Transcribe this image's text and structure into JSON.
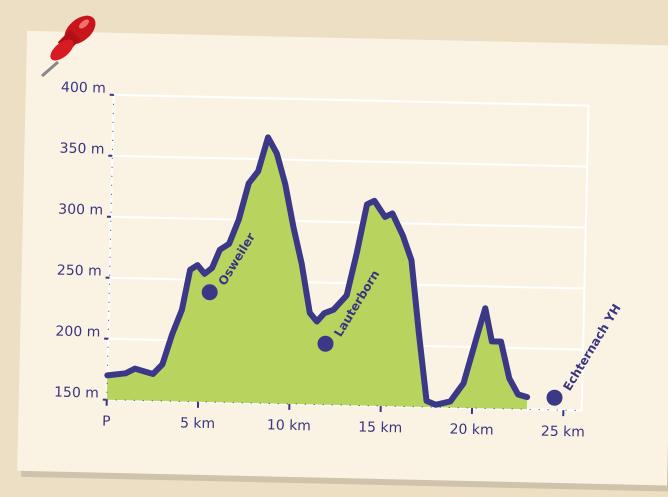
{
  "chart_data": {
    "type": "area",
    "x": [
      0,
      1,
      1.5,
      2.5,
      3,
      3.5,
      4,
      4.4,
      4.8,
      5.2,
      5.6,
      6,
      6.5,
      7,
      7.5,
      8,
      8.5,
      9,
      9.5,
      10,
      10.5,
      11,
      11.4,
      11.8,
      12.3,
      13,
      13.5,
      14,
      14.4,
      15,
      15.4,
      16,
      16.5,
      17,
      17.5,
      18,
      18.8,
      19.5,
      20.2,
      20.6,
      21,
      21.5,
      22,
      22.5,
      23
    ],
    "values": [
      170,
      172,
      176,
      172,
      180,
      205,
      225,
      258,
      262,
      255,
      260,
      275,
      280,
      300,
      330,
      340,
      368,
      355,
      330,
      295,
      265,
      225,
      218,
      225,
      228,
      240,
      275,
      315,
      318,
      305,
      308,
      290,
      270,
      210,
      155,
      152,
      155,
      170,
      210,
      232,
      205,
      205,
      175,
      162,
      160
    ],
    "color": "#b7d45e",
    "line_color": "#3b3888",
    "xlim": [
      0,
      26
    ],
    "ylim": [
      150,
      400
    ],
    "xticks": [
      {
        "value": 0,
        "label": "P"
      },
      {
        "value": 5,
        "label": "5 km"
      },
      {
        "value": 10,
        "label": "10 km"
      },
      {
        "value": 15,
        "label": "15 km"
      },
      {
        "value": 20,
        "label": "20 km"
      },
      {
        "value": 25,
        "label": "25 km"
      }
    ],
    "yticks": [
      {
        "value": 150,
        "label": "150 m"
      },
      {
        "value": 200,
        "label": "200 m"
      },
      {
        "value": 250,
        "label": "250 m"
      },
      {
        "value": 300,
        "label": "300 m"
      },
      {
        "value": 350,
        "label": "350 m"
      },
      {
        "value": 400,
        "label": "400 m"
      }
    ],
    "grid": true,
    "annotations": [
      {
        "label": "Osweiler",
        "x": 5.5,
        "y": 240
      },
      {
        "label": "Lauterborn",
        "x": 11.9,
        "y": 200
      },
      {
        "label": "Echternach YH",
        "x": 24.5,
        "y": 160
      }
    ]
  }
}
